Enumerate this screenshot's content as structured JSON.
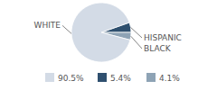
{
  "chart_data": {
    "type": "pie",
    "categories": [
      "WHITE",
      "HISPANIC",
      "BLACK"
    ],
    "values": [
      90.5,
      5.4,
      4.1
    ],
    "value_labels": [
      "90.5%",
      "5.4%",
      "4.1%"
    ],
    "colors": [
      "#d3dbe6",
      "#2f506f",
      "#8ea3b5"
    ]
  }
}
